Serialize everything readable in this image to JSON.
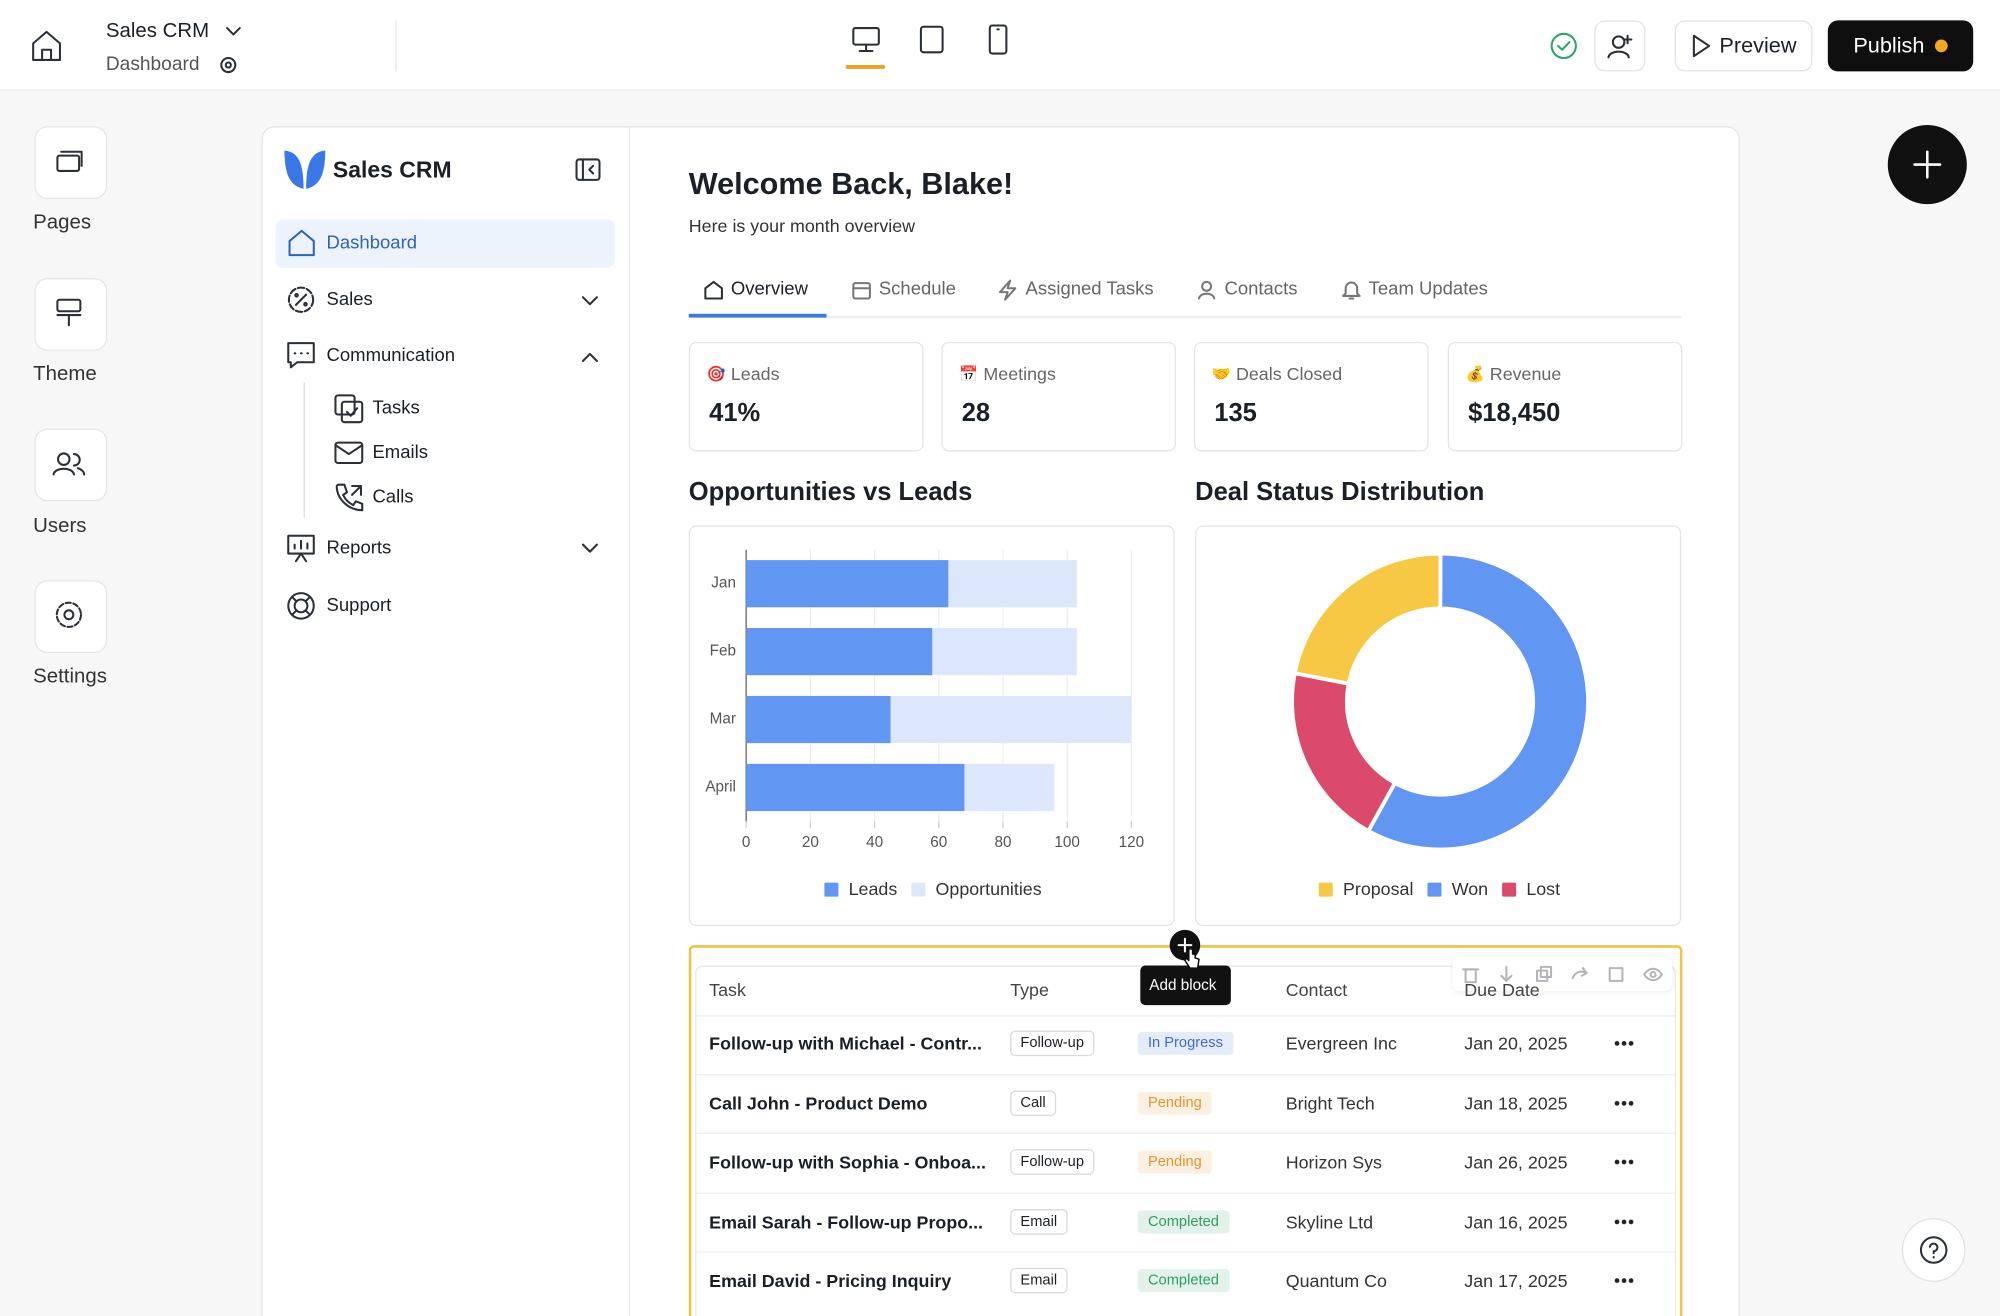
{
  "topbar": {
    "app": "Sales CRM",
    "page": "Dashboard",
    "preview": "Preview",
    "publish": "Publish"
  },
  "rail": [
    "Pages",
    "Theme",
    "Users",
    "Settings"
  ],
  "sidebar": {
    "brand": "Sales CRM",
    "nav": [
      "Dashboard",
      "Sales",
      "Communication",
      "Reports",
      "Support"
    ],
    "sub_nav": [
      "Tasks",
      "Emails",
      "Calls"
    ]
  },
  "header": {
    "title": "Welcome Back, Blake!",
    "subtitle": "Here is your month overview"
  },
  "tabs": [
    "Overview",
    "Schedule",
    "Assigned Tasks",
    "Contacts",
    "Team Updates"
  ],
  "stats": [
    {
      "icon": "🎯",
      "label": "Leads",
      "value": "41%"
    },
    {
      "icon": "📅",
      "label": "Meetings",
      "value": "28"
    },
    {
      "icon": "🤝",
      "label": "Deals Closed",
      "value": "135"
    },
    {
      "icon": "💰",
      "label": "Revenue",
      "value": "$18,450"
    }
  ],
  "chart_data": [
    {
      "type": "bar",
      "orientation": "horizontal",
      "stacked": true,
      "title": "Opportunities vs Leads",
      "categories": [
        "Jan",
        "Feb",
        "Mar",
        "April"
      ],
      "series": [
        {
          "name": "Leads",
          "color": "#6196f2",
          "values": [
            63,
            58,
            45,
            68
          ]
        },
        {
          "name": "Opportunities",
          "color": "#dde7fb",
          "values": [
            40,
            45,
            75,
            28
          ]
        }
      ],
      "xlim": [
        0,
        120
      ],
      "xticks": [
        0,
        20,
        40,
        60,
        80,
        100,
        120
      ],
      "grid": true,
      "legend": "bottom"
    },
    {
      "type": "pie",
      "donut": true,
      "title": "Deal Status Distribution",
      "categories": [
        "Proposal",
        "Won",
        "Lost"
      ],
      "values": [
        22,
        58,
        20
      ],
      "colors": [
        "#f6c844",
        "#6196f2",
        "#dc4a6b"
      ],
      "legend": "bottom"
    }
  ],
  "table": {
    "columns": {
      "task": "Task",
      "type": "Type",
      "contact": "Contact",
      "due": "Due Date"
    },
    "rows": [
      {
        "task": "Follow-up with Michael - Contr...",
        "type": "Follow-up",
        "status": "In Progress",
        "status_color": "#3b6fd6",
        "contact": "Evergreen Inc",
        "due": "Jan 20, 2025"
      },
      {
        "task": "Call John - Product Demo",
        "type": "Call",
        "status": "Pending",
        "status_color": "#e6952e",
        "contact": "Bright Tech",
        "due": "Jan 18, 2025"
      },
      {
        "task": "Follow-up with Sophia - Onboa...",
        "type": "Follow-up",
        "status": "Pending",
        "status_color": "#e6952e",
        "contact": "Horizon Sys",
        "due": "Jan 26, 2025"
      },
      {
        "task": "Email Sarah - Follow-up Propo...",
        "type": "Email",
        "status": "Completed",
        "status_color": "#2f9e62",
        "contact": "Skyline Ltd",
        "due": "Jan 16, 2025"
      },
      {
        "task": "Email David - Pricing Inquiry",
        "type": "Email",
        "status": "Completed",
        "status_color": "#2f9e62",
        "contact": "Quantum Co",
        "due": "Jan 17, 2025"
      }
    ]
  },
  "tooltip": "Add block"
}
